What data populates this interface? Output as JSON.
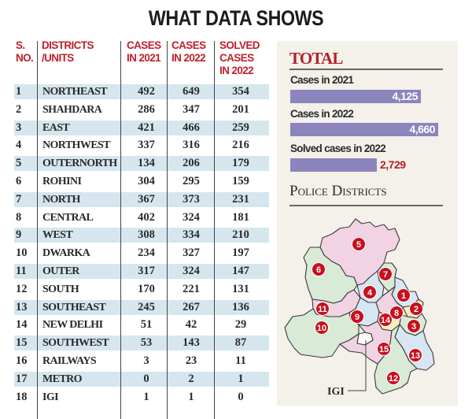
{
  "title": "WHAT DATA SHOWS",
  "table": {
    "headers": {
      "sno": [
        "S.",
        "NO."
      ],
      "district": [
        "DISTRICTS",
        "/UNITS"
      ],
      "cases2021": [
        "CASES",
        "IN 2021"
      ],
      "cases2022": [
        "CASES",
        "IN 2022"
      ],
      "solved2022": [
        "SOLVED",
        "CASES",
        "IN 2022"
      ]
    },
    "rows": [
      {
        "sno": "1",
        "district": "NORTHEAST",
        "c2021": "492",
        "c2022": "649",
        "solved": "354"
      },
      {
        "sno": "2",
        "district": "SHAHDARA",
        "c2021": "286",
        "c2022": "347",
        "solved": "201"
      },
      {
        "sno": "3",
        "district": "EAST",
        "c2021": "421",
        "c2022": "466",
        "solved": "259"
      },
      {
        "sno": "4",
        "district": "NORTHWEST",
        "c2021": "337",
        "c2022": "316",
        "solved": "216"
      },
      {
        "sno": "5",
        "district": "OUTERNORTH",
        "c2021": "134",
        "c2022": "206",
        "solved": "179"
      },
      {
        "sno": "6",
        "district": "ROHINI",
        "c2021": "304",
        "c2022": "295",
        "solved": "159"
      },
      {
        "sno": "7",
        "district": "NORTH",
        "c2021": "367",
        "c2022": "373",
        "solved": "231"
      },
      {
        "sno": "8",
        "district": "CENTRAL",
        "c2021": "402",
        "c2022": "324",
        "solved": "181"
      },
      {
        "sno": "9",
        "district": "WEST",
        "c2021": "308",
        "c2022": "334",
        "solved": "210"
      },
      {
        "sno": "10",
        "district": "DWARKA",
        "c2021": "234",
        "c2022": "327",
        "solved": "197"
      },
      {
        "sno": "11",
        "district": "OUTER",
        "c2021": "317",
        "c2022": "324",
        "solved": "147"
      },
      {
        "sno": "12",
        "district": "SOUTH",
        "c2021": "170",
        "c2022": "221",
        "solved": "131"
      },
      {
        "sno": "13",
        "district": "SOUTHEAST",
        "c2021": "245",
        "c2022": "267",
        "solved": "136"
      },
      {
        "sno": "14",
        "district": "NEW DELHI",
        "c2021": "51",
        "c2022": "42",
        "solved": "29"
      },
      {
        "sno": "15",
        "district": "SOUTHWEST",
        "c2021": "53",
        "c2022": "143",
        "solved": "87"
      },
      {
        "sno": "16",
        "district": "RAILWAYS",
        "c2021": "3",
        "c2022": "23",
        "solved": "11"
      },
      {
        "sno": "17",
        "district": "METRO",
        "c2021": "0",
        "c2022": "2",
        "solved": "1"
      },
      {
        "sno": "18",
        "district": "IGI",
        "c2021": "1",
        "c2022": "1",
        "solved": "0"
      }
    ]
  },
  "chart_data": {
    "type": "bar",
    "title": "TOTAL",
    "orientation": "horizontal",
    "categories": [
      "Cases in 2021",
      "Cases in 2022",
      "Solved cases in 2022"
    ],
    "values": [
      4125,
      4660,
      2729
    ],
    "value_labels": [
      "4,125",
      "4,660",
      "2,729"
    ],
    "xlabel": "",
    "ylabel": "",
    "xlim": [
      0,
      4660
    ],
    "grid": false,
    "legend": "none"
  },
  "map": {
    "title": "Police Districts",
    "igi_label": "IGI",
    "district_numbers": [
      "1",
      "2",
      "3",
      "4",
      "5",
      "6",
      "7",
      "8",
      "9",
      "10",
      "11",
      "12",
      "13",
      "14",
      "15"
    ]
  },
  "colors": {
    "header_red": "#c0202a",
    "accent_red": "#b3202a",
    "bar_purple": "#8c84bd",
    "stripe_blue": "#d6e6ee",
    "panel_bg": "#f4f0ea",
    "map_pink": "#f2d3e3",
    "map_green": "#d9ead6",
    "map_blue": "#d8e6f3",
    "map_yellow": "#f6eebd",
    "badge_red": "#c8101e"
  }
}
